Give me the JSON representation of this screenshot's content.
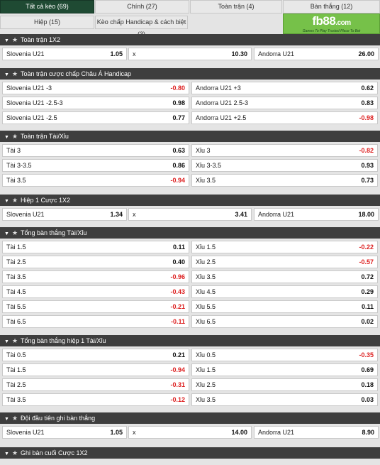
{
  "tabs": [
    {
      "label": "Tất cả kèo (69)",
      "active": true
    },
    {
      "label": "Chính (27)",
      "active": false
    },
    {
      "label": "Toàn trận (4)",
      "active": false
    },
    {
      "label": "Bàn thắng (12)",
      "active": false
    },
    {
      "label": "Hiệp (15)",
      "active": false
    },
    {
      "label": "Kèo chấp Handicap & cách biệt (3)",
      "active": false
    }
  ],
  "logo": {
    "brand": "fb88",
    "tld": ".com",
    "slogan": "Games To Play  Trusted Place To Bet"
  },
  "colors": {
    "header_bg": "#3e3e3e",
    "active_tab": "#1f4a33",
    "negative": "#d22222",
    "logo_bg": "#76c149"
  },
  "sections": [
    {
      "title": "Toàn trận 1X2",
      "rows": [
        [
          {
            "name": "Slovenia U21",
            "odds": "1.05"
          },
          {
            "name": "x",
            "odds": "10.30"
          },
          {
            "name": "Andorra U21",
            "odds": "26.00"
          }
        ]
      ]
    },
    {
      "title": "Toàn trận cược chấp Châu Á Handicap",
      "rows": [
        [
          {
            "name": "Slovenia U21",
            "line": "-3",
            "odds": "-0.80"
          },
          {
            "name": "Andorra U21",
            "line": "+3",
            "odds": "0.62"
          }
        ],
        [
          {
            "name": "Slovenia U21",
            "line": "-2.5-3",
            "odds": "0.98"
          },
          {
            "name": "Andorra U21",
            "line": "2.5-3",
            "odds": "0.83"
          }
        ],
        [
          {
            "name": "Slovenia U21",
            "line": "-2.5",
            "odds": "0.77"
          },
          {
            "name": "Andorra U21",
            "line": "+2.5",
            "odds": "-0.98"
          }
        ]
      ]
    },
    {
      "title": "Toàn trận Tài/Xỉu",
      "rows": [
        [
          {
            "name": "Tài",
            "line": "3",
            "odds": "0.63"
          },
          {
            "name": "Xỉu",
            "line": "3",
            "odds": "-0.82"
          }
        ],
        [
          {
            "name": "Tài",
            "line": "3-3.5",
            "odds": "0.86"
          },
          {
            "name": "Xỉu",
            "line": "3-3.5",
            "odds": "0.93"
          }
        ],
        [
          {
            "name": "Tài",
            "line": "3.5",
            "odds": "-0.94"
          },
          {
            "name": "Xỉu",
            "line": "3.5",
            "odds": "0.73"
          }
        ]
      ]
    },
    {
      "title": "Hiệp 1 Cược 1X2",
      "rows": [
        [
          {
            "name": "Slovenia U21",
            "odds": "1.34"
          },
          {
            "name": "x",
            "odds": "3.41"
          },
          {
            "name": "Andorra U21",
            "odds": "18.00"
          }
        ]
      ]
    },
    {
      "title": "Tổng bàn thắng Tài/Xỉu",
      "rows": [
        [
          {
            "name": "Tài",
            "line": "1.5",
            "odds": "0.11"
          },
          {
            "name": "Xỉu",
            "line": "1.5",
            "odds": "-0.22"
          }
        ],
        [
          {
            "name": "Tài",
            "line": "2.5",
            "odds": "0.40"
          },
          {
            "name": "Xỉu",
            "line": "2.5",
            "odds": "-0.57"
          }
        ],
        [
          {
            "name": "Tài",
            "line": "3.5",
            "odds": "-0.96"
          },
          {
            "name": "Xỉu",
            "line": "3.5",
            "odds": "0.72"
          }
        ],
        [
          {
            "name": "Tài",
            "line": "4.5",
            "odds": "-0.43"
          },
          {
            "name": "Xỉu",
            "line": "4.5",
            "odds": "0.29"
          }
        ],
        [
          {
            "name": "Tài",
            "line": "5.5",
            "odds": "-0.21"
          },
          {
            "name": "Xỉu",
            "line": "5.5",
            "odds": "0.11"
          }
        ],
        [
          {
            "name": "Tài",
            "line": "6.5",
            "odds": "-0.11"
          },
          {
            "name": "Xỉu",
            "line": "6.5",
            "odds": "0.02"
          }
        ]
      ]
    },
    {
      "title": "Tổng bàn thắng hiệp 1 Tài/Xỉu",
      "rows": [
        [
          {
            "name": "Tài",
            "line": "0.5",
            "odds": "0.21"
          },
          {
            "name": "Xỉu",
            "line": "0.5",
            "odds": "-0.35"
          }
        ],
        [
          {
            "name": "Tài",
            "line": "1.5",
            "odds": "-0.94"
          },
          {
            "name": "Xỉu",
            "line": "1.5",
            "odds": "0.69"
          }
        ],
        [
          {
            "name": "Tài",
            "line": "2.5",
            "odds": "-0.31"
          },
          {
            "name": "Xỉu",
            "line": "2.5",
            "odds": "0.18"
          }
        ],
        [
          {
            "name": "Tài",
            "line": "3.5",
            "odds": "-0.12"
          },
          {
            "name": "Xỉu",
            "line": "3.5",
            "odds": "0.03"
          }
        ]
      ]
    },
    {
      "title": "Đội đầu tiên ghi bàn thắng",
      "rows": [
        [
          {
            "name": "Slovenia U21",
            "odds": "1.05"
          },
          {
            "name": "x",
            "odds": "14.00"
          },
          {
            "name": "Andorra U21",
            "odds": "8.90"
          }
        ]
      ]
    },
    {
      "title": "Ghi bàn cuối Cược 1X2",
      "rows": []
    }
  ]
}
